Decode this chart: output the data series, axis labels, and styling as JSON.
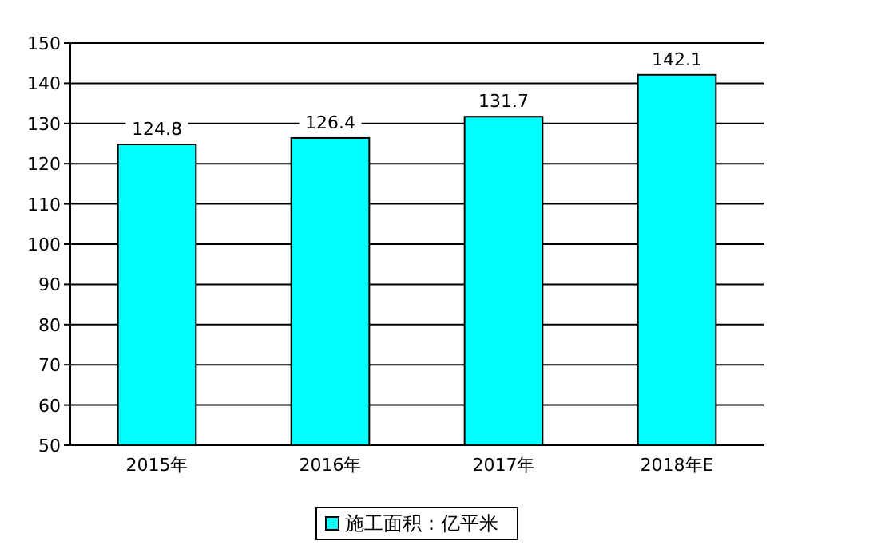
{
  "chart_data": {
    "type": "bar",
    "categories": [
      "2015年",
      "2016年",
      "2017年",
      "2018年E"
    ],
    "series": [
      {
        "name": "施工面积：亿平米",
        "color": "#00ffff",
        "values": [
          124.8,
          126.4,
          131.7,
          142.1
        ]
      }
    ],
    "ylim": [
      50,
      150
    ],
    "yticks": [
      50,
      60,
      70,
      80,
      90,
      100,
      110,
      120,
      130,
      140,
      150
    ],
    "grid": "y",
    "legend": "bottom",
    "data_labels": true
  }
}
